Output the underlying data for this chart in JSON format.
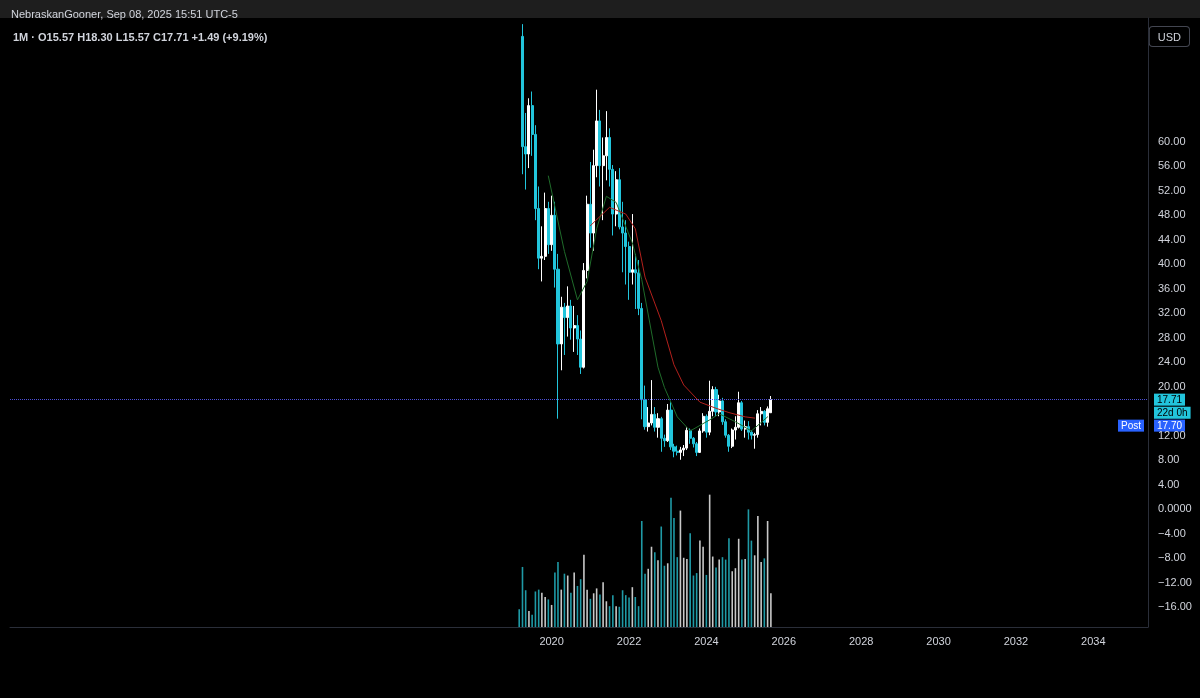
{
  "chart_data": {
    "type": "candlestick",
    "title": "1M · O15.57 H18.30 L15.57 C17.71 +1.49 (+9.19%)",
    "subtitle": "NebraskanGooner, Sep 08, 2025 15:51 UTC-5",
    "annotations": [
      "USD",
      "22d 0h",
      "Post",
      "17.70"
    ],
    "series": [
      {
        "x": [
          "2019-04",
          "2019-05",
          "2019-06",
          "2019-07",
          "2019-08",
          "2019-09",
          "2019-10",
          "2019-11",
          "2019-12",
          "2020-01",
          "2020-02",
          "2020-03",
          "2020-04",
          "2020-05",
          "2020-06",
          "2020-07",
          "2020-08",
          "2020-09",
          "2020-10",
          "2020-11",
          "2020-12",
          "2021-01",
          "2021-02",
          "2021-03",
          "2021-04",
          "2021-05",
          "2021-06",
          "2021-07",
          "2021-08",
          "2021-09",
          "2021-10",
          "2021-11",
          "2021-12",
          "2022-01",
          "2022-02",
          "2022-03",
          "2022-04",
          "2022-05",
          "2022-06",
          "2022-07",
          "2022-08",
          "2022-09",
          "2022-10",
          "2022-11",
          "2022-12",
          "2023-01",
          "2023-02",
          "2023-03",
          "2023-04",
          "2023-05",
          "2023-06",
          "2023-07",
          "2023-08",
          "2023-09",
          "2023-10",
          "2023-11",
          "2023-12",
          "2024-01",
          "2024-02",
          "2024-03",
          "2024-04",
          "2024-05",
          "2024-06",
          "2024-07",
          "2024-08",
          "2024-09",
          "2024-10",
          "2024-11",
          "2024-12",
          "2025-01",
          "2025-02",
          "2025-03",
          "2025-04",
          "2025-05",
          "2025-06",
          "2025-07",
          "2025-08",
          "2025-09"
        ],
        "ohlc": [
          [
            77,
            79,
            54.5,
            59
          ],
          [
            59,
            64.5,
            52,
            57.8
          ],
          [
            57.8,
            66.9,
            55.5,
            65.7
          ],
          [
            65.7,
            68,
            57.5,
            61
          ],
          [
            61,
            62.5,
            47,
            48.9
          ],
          [
            48.9,
            52.5,
            39,
            40.8
          ],
          [
            40.8,
            46,
            37,
            41.1
          ],
          [
            41.1,
            51.5,
            40.5,
            48.9
          ],
          [
            48.9,
            50,
            41.5,
            43
          ],
          [
            43,
            51,
            42,
            47.8
          ],
          [
            47.8,
            50,
            36,
            39
          ],
          [
            39,
            41.5,
            14.6,
            26.8
          ],
          [
            26.8,
            34.5,
            22.5,
            32.8
          ],
          [
            32.8,
            33.5,
            25,
            31.1
          ],
          [
            31.1,
            36.2,
            28,
            33
          ],
          [
            33,
            34,
            27.5,
            29.4
          ],
          [
            29.4,
            33,
            25.5,
            29.8
          ],
          [
            29.8,
            31.5,
            25,
            27.6
          ],
          [
            27.6,
            29,
            21.9,
            23
          ],
          [
            23,
            40,
            22.8,
            38.8
          ],
          [
            38.8,
            51,
            37.5,
            49.6
          ],
          [
            49.6,
            56.5,
            42.5,
            44.9
          ],
          [
            44.9,
            58.5,
            42,
            55.9
          ],
          [
            55.9,
            68.3,
            54,
            63.2
          ],
          [
            63.2,
            65,
            52.5,
            55.9
          ],
          [
            55.9,
            60.5,
            47,
            57.5
          ],
          [
            57.5,
            64.8,
            53.5,
            60.5
          ],
          [
            60.5,
            62,
            52.5,
            55.3
          ],
          [
            55.3,
            56,
            44.5,
            48
          ],
          [
            48,
            55,
            46,
            53.6
          ],
          [
            53.6,
            55.5,
            45.5,
            45.9
          ],
          [
            45.9,
            50,
            38.5,
            44.9
          ],
          [
            44.9,
            47,
            36.5,
            42.7
          ],
          [
            42.7,
            43.5,
            34,
            38.5
          ],
          [
            38.5,
            48,
            36.5,
            38.9
          ],
          [
            38.9,
            41.5,
            32.5,
            38.4
          ],
          [
            38.4,
            40.5,
            31.5,
            32.6
          ],
          [
            32.6,
            33.5,
            14.5,
            17.7
          ],
          [
            17.7,
            20,
            12.8,
            13.3
          ],
          [
            13.3,
            16.5,
            12.5,
            13.9
          ],
          [
            13.9,
            20.9,
            13.5,
            15.3
          ],
          [
            15.3,
            16.5,
            12.5,
            13.2
          ],
          [
            13.2,
            15.5,
            11.5,
            14.6
          ],
          [
            14.6,
            14.9,
            9.2,
            11.4
          ],
          [
            11.4,
            12,
            10,
            11
          ],
          [
            11,
            17,
            10.8,
            16
          ],
          [
            16,
            17.3,
            9.5,
            10
          ],
          [
            10,
            10.5,
            8.3,
            9.3
          ],
          [
            9.3,
            10.2,
            8.6,
            9.1
          ],
          [
            9.1,
            10,
            7.9,
            9.5
          ],
          [
            9.5,
            10.3,
            8.5,
            9.8
          ],
          [
            9.8,
            13.2,
            9.5,
            12.7
          ],
          [
            12.7,
            13,
            10.5,
            11.4
          ],
          [
            11.4,
            11.6,
            9.9,
            10.5
          ],
          [
            10.5,
            10.8,
            8.5,
            9.1
          ],
          [
            9.1,
            13,
            9,
            12.6
          ],
          [
            12.6,
            15.5,
            12.3,
            14.99
          ],
          [
            14.99,
            15.3,
            11.5,
            12.4
          ],
          [
            12.4,
            20.8,
            11.9,
            15.8
          ],
          [
            15.8,
            19.9,
            15,
            19.35
          ],
          [
            19.35,
            19.8,
            15,
            15.7
          ],
          [
            15.7,
            18.5,
            15,
            17.5
          ],
          [
            17.5,
            18,
            13.6,
            14.1
          ],
          [
            14.1,
            14.5,
            11.5,
            11.9
          ],
          [
            11.9,
            12.1,
            9.2,
            10.1
          ],
          [
            10.1,
            13,
            9.8,
            12.75
          ],
          [
            12.75,
            15,
            11.2,
            13.2
          ],
          [
            13.2,
            19,
            13,
            17.2
          ],
          [
            17.2,
            17.5,
            12.6,
            12.9
          ],
          [
            12.9,
            14.3,
            11.5,
            13.3
          ],
          [
            13.3,
            14.2,
            11.2,
            12.4
          ],
          [
            12.4,
            12.7,
            11.2,
            11.9
          ],
          [
            11.9,
            12.3,
            9.7,
            12
          ],
          [
            12,
            16,
            11.5,
            15.4
          ],
          [
            15.4,
            16.5,
            13.5,
            15.8
          ],
          [
            15.8,
            16,
            13.5,
            14
          ],
          [
            14,
            16.6,
            13.3,
            16.22
          ],
          [
            15.57,
            18.3,
            15.57,
            17.71
          ]
        ],
        "colors": [
          "#22c5dc",
          "#22c5dc",
          "#ffffff",
          "#22c5dc",
          "#22c5dc",
          "#22c5dc",
          "#ffffff",
          "#ffffff",
          "#22c5dc",
          "#ffffff",
          "#22c5dc",
          "#22c5dc",
          "#ffffff",
          "#22c5dc",
          "#ffffff",
          "#22c5dc",
          "#ffffff",
          "#22c5dc",
          "#22c5dc",
          "#ffffff",
          "#ffffff",
          "#22c5dc",
          "#ffffff",
          "#ffffff",
          "#22c5dc",
          "#ffffff",
          "#ffffff",
          "#22c5dc",
          "#22c5dc",
          "#ffffff",
          "#22c5dc",
          "#22c5dc",
          "#22c5dc",
          "#22c5dc",
          "#ffffff",
          "#22c5dc",
          "#22c5dc",
          "#22c5dc",
          "#22c5dc",
          "#ffffff",
          "#ffffff",
          "#22c5dc",
          "#ffffff",
          "#22c5dc",
          "#22c5dc",
          "#ffffff",
          "#22c5dc",
          "#22c5dc",
          "#22c5dc",
          "#ffffff",
          "#ffffff",
          "#ffffff",
          "#22c5dc",
          "#22c5dc",
          "#22c5dc",
          "#ffffff",
          "#ffffff",
          "#22c5dc",
          "#ffffff",
          "#ffffff",
          "#22c5dc",
          "#ffffff",
          "#22c5dc",
          "#22c5dc",
          "#22c5dc",
          "#ffffff",
          "#ffffff",
          "#ffffff",
          "#22c5dc",
          "#ffffff",
          "#22c5dc",
          "#22c5dc",
          "#ffffff",
          "#ffffff",
          "#ffffff",
          "#22c5dc",
          "#ffffff",
          "#ffffff"
        ]
      },
      {
        "type": "line",
        "color": "#1f6b2a",
        "x": [
          "2019-12",
          "2020-05",
          "2020-09",
          "2020-12",
          "2021-03",
          "2021-06",
          "2021-09",
          "2022-02",
          "2022-05",
          "2022-10",
          "2022-12",
          "2023-04",
          "2023-08",
          "2024-02",
          "2024-05",
          "2024-10",
          "2025-03",
          "2025-08"
        ],
        "values": [
          54.2,
          41.9,
          34,
          37,
          45.6,
          50.9,
          49.9,
          43.3,
          37.3,
          23,
          19.7,
          14.9,
          12.6,
          14.4,
          15.4,
          14.1,
          12.6,
          14.9
        ]
      },
      {
        "type": "line",
        "color": "#b3201c",
        "x": [
          "2021-01",
          "2021-04",
          "2021-07",
          "2021-12",
          "2022-03",
          "2022-06",
          "2022-11",
          "2023-03",
          "2023-06",
          "2023-11",
          "2024-04",
          "2024-08",
          "2025-01",
          "2025-04"
        ],
        "values": [
          46.1,
          47.6,
          49.1,
          48,
          45.6,
          37.7,
          30.6,
          23.4,
          20.1,
          17.3,
          16.3,
          15.6,
          14.9,
          14.7
        ]
      },
      {
        "type": "bar",
        "x": [
          "2019-03",
          "2019-04",
          "2019-05",
          "2019-06",
          "2019-07",
          "2019-08",
          "2019-09",
          "2019-10",
          "2019-11",
          "2019-12",
          "2020-01",
          "2020-02",
          "2020-03",
          "2020-04",
          "2020-05",
          "2020-06",
          "2020-07",
          "2020-08",
          "2020-09",
          "2020-10",
          "2020-11",
          "2020-12",
          "2021-01",
          "2021-02",
          "2021-03",
          "2021-04",
          "2021-05",
          "2021-06",
          "2021-07",
          "2021-08",
          "2021-09",
          "2021-10",
          "2021-11",
          "2021-12",
          "2022-01",
          "2022-02",
          "2022-03",
          "2022-04",
          "2022-05",
          "2022-06",
          "2022-07",
          "2022-08",
          "2022-09",
          "2022-10",
          "2022-11",
          "2022-12",
          "2023-01",
          "2023-02",
          "2023-03",
          "2023-04",
          "2023-05",
          "2023-06",
          "2023-07",
          "2023-08",
          "2023-09",
          "2023-10",
          "2023-11",
          "2023-12",
          "2024-01",
          "2024-02",
          "2024-03",
          "2024-04",
          "2024-05",
          "2024-06",
          "2024-07",
          "2024-08",
          "2024-09",
          "2024-10",
          "2024-11",
          "2024-12",
          "2025-01",
          "2025-02",
          "2025-03",
          "2025-04",
          "2025-05",
          "2025-06",
          "2025-07",
          "2025-08",
          "2025-09"
        ],
        "values": [
          2.9,
          9.8,
          6.0,
          2.6,
          2.0,
          5.8,
          6.1,
          5.6,
          4.9,
          4.5,
          3.6,
          8.9,
          10.6,
          6.1,
          8.7,
          8.4,
          5.6,
          8.9,
          6.7,
          7.8,
          11.8,
          6.1,
          4.6,
          5.5,
          6.3,
          5.3,
          7.3,
          4.2,
          3.4,
          5.2,
          3.4,
          3.3,
          6.0,
          5.2,
          4.8,
          6.5,
          4.9,
          3.4,
          17.3,
          8.7,
          9.5,
          13.1,
          12.2,
          10.9,
          16.4,
          10.0,
          10.4,
          21.1,
          17.8,
          11.4,
          19.0,
          11.3,
          11.1,
          15.3,
          8.4,
          8.8,
          14.1,
          13.1,
          8.5,
          21.6,
          11.5,
          9.7,
          11.0,
          11.4,
          11.0,
          14.5,
          9.1,
          9.6,
          14.4,
          11.0,
          11.1,
          19.2,
          14.1,
          11.7,
          18.1,
          10.6,
          11.2,
          17.3,
          5.5
        ],
        "base": [
          -19.4,
          -19.4,
          -19.4,
          -19.4,
          -19.4,
          -19.4,
          -19.4,
          -19.4,
          -19.4,
          -19.4,
          -19.4,
          -19.4,
          -19.4,
          -19.4,
          -19.4,
          -19.4,
          -19.4,
          -19.4,
          -19.4,
          -19.4,
          -19.4,
          -19.4,
          -19.4,
          -19.4,
          -19.4,
          -19.4,
          -19.4,
          -19.4,
          -19.4,
          -19.4,
          -19.4,
          -19.4,
          -19.4,
          -19.4,
          -19.4,
          -19.4,
          -19.4,
          -19.4,
          -19.4,
          -19.4,
          -19.4,
          -19.4,
          -19.4,
          -19.4,
          -19.4,
          -19.4,
          -19.4,
          -19.4,
          -19.4,
          -19.4,
          -19.4,
          -19.4,
          -19.4,
          -19.4,
          -19.4,
          -19.4,
          -19.4,
          -19.4,
          -19.4,
          -19.4,
          -19.4,
          -19.4,
          -19.4,
          -19.4,
          -19.4,
          -19.4,
          -19.4,
          -19.4,
          -19.4,
          -19.4,
          -19.4,
          -19.4,
          -19.4,
          -19.4,
          -19.4,
          -19.4,
          -19.4,
          -19.4,
          -19.4
        ],
        "colors": [
          "#1f9aa6",
          "#1f9aa6",
          "#1f9aa6",
          "#c8c8c8",
          "#1f9aa6",
          "#1f9aa6",
          "#1f9aa6",
          "#c8c8c8",
          "#c8c8c8",
          "#1f9aa6",
          "#c8c8c8",
          "#1f9aa6",
          "#1f9aa6",
          "#c8c8c8",
          "#1f9aa6",
          "#c8c8c8",
          "#1f9aa6",
          "#c8c8c8",
          "#1f9aa6",
          "#1f9aa6",
          "#c8c8c8",
          "#c8c8c8",
          "#1f9aa6",
          "#c8c8c8",
          "#c8c8c8",
          "#1f9aa6",
          "#c8c8c8",
          "#c8c8c8",
          "#1f9aa6",
          "#1f9aa6",
          "#c8c8c8",
          "#1f9aa6",
          "#1f9aa6",
          "#1f9aa6",
          "#1f9aa6",
          "#c8c8c8",
          "#1f9aa6",
          "#1f9aa6",
          "#1f9aa6",
          "#1f9aa6",
          "#c8c8c8",
          "#c8c8c8",
          "#1f9aa6",
          "#c8c8c8",
          "#1f9aa6",
          "#1f9aa6",
          "#c8c8c8",
          "#1f9aa6",
          "#1f9aa6",
          "#1f9aa6",
          "#c8c8c8",
          "#c8c8c8",
          "#c8c8c8",
          "#1f9aa6",
          "#1f9aa6",
          "#1f9aa6",
          "#c8c8c8",
          "#c8c8c8",
          "#1f9aa6",
          "#c8c8c8",
          "#c8c8c8",
          "#1f9aa6",
          "#c8c8c8",
          "#1f9aa6",
          "#1f9aa6",
          "#1f9aa6",
          "#c8c8c8",
          "#c8c8c8",
          "#c8c8c8",
          "#1f9aa6",
          "#c8c8c8",
          "#1f9aa6",
          "#1f9aa6",
          "#c8c8c8",
          "#c8c8c8",
          "#c8c8c8",
          "#1f9aa6",
          "#c8c8c8",
          "#c8c8c8"
        ]
      }
    ],
    "xlim": [
      "2006-01",
      "2035-06"
    ],
    "xticks": [
      "2020",
      "2022",
      "2024",
      "2026",
      "2028",
      "2030",
      "2032",
      "2034"
    ],
    "ylim": [
      -19.4,
      80
    ],
    "yticks": [
      {
        "value": -16,
        "label": "−16.00"
      },
      {
        "value": -12,
        "label": "−12.00"
      },
      {
        "value": -8,
        "label": "−8.00"
      },
      {
        "value": -4,
        "label": "−4.00"
      },
      {
        "value": 0,
        "label": "0.0000"
      },
      {
        "value": 4,
        "label": "4.00"
      },
      {
        "value": 8,
        "label": "8.00"
      },
      {
        "value": 12,
        "label": "12.00"
      },
      {
        "value": 20,
        "label": "20.00"
      },
      {
        "value": 24,
        "label": "24.00"
      },
      {
        "value": 28,
        "label": "28.00"
      },
      {
        "value": 32,
        "label": "32.00"
      },
      {
        "value": 36,
        "label": "36.00"
      },
      {
        "value": 40,
        "label": "40.00"
      },
      {
        "value": 44,
        "label": "44.00"
      },
      {
        "value": 48,
        "label": "48.00"
      },
      {
        "value": 52,
        "label": "52.00"
      },
      {
        "value": 56,
        "label": "56.00"
      },
      {
        "value": 60,
        "label": "60.00"
      }
    ],
    "ref_lines": [
      {
        "axis": "y",
        "value": 17.71,
        "label": "17.71",
        "color": "#4b4fd6",
        "line_style": "dotted"
      }
    ],
    "grid": false,
    "marker": "none"
  }
}
